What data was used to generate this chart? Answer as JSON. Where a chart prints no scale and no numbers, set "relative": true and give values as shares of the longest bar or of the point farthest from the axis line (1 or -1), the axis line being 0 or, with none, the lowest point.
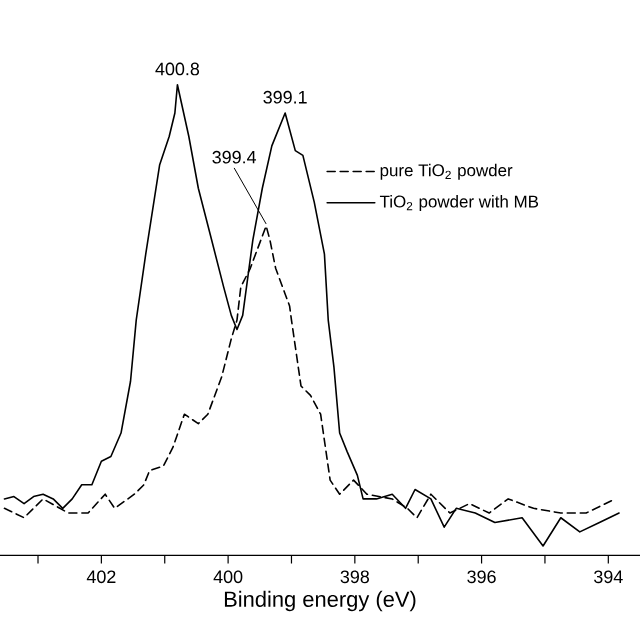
{
  "chart_data": {
    "type": "line",
    "xlabel": "Binding energy (eV)",
    "relative": true,
    "xlim": [
      403.6,
      393.5
    ],
    "xticks": [
      {
        "value": 403,
        "label": null
      },
      402,
      {
        "value": 401,
        "label": null
      },
      400,
      {
        "value": 399,
        "label": null
      },
      398,
      {
        "value": 397,
        "label": null
      },
      396,
      {
        "value": 395,
        "label": null
      },
      394
    ],
    "legend": "right",
    "series": [
      {
        "name": "pure TiO$_{2}$ powder",
        "color": "#000000",
        "line_style": "dashed",
        "x": [
          403.53,
          403.22,
          402.92,
          402.52,
          402.21,
          401.94,
          401.79,
          401.48,
          401.33,
          401.24,
          401.02,
          400.87,
          400.69,
          400.47,
          400.32,
          400.1,
          399.95,
          399.86,
          399.8,
          399.65,
          399.4,
          399.34,
          399.25,
          399.03,
          399.0,
          398.85,
          398.7,
          398.54,
          398.39,
          398.24,
          398.02,
          397.81,
          397.41,
          397.17,
          397.02,
          396.8,
          396.5,
          396.19,
          395.88,
          395.58,
          395.18,
          394.75,
          394.35,
          393.89
        ],
        "values": [
          0.1,
          0.08,
          0.12,
          0.09,
          0.09,
          0.13,
          0.1,
          0.13,
          0.15,
          0.18,
          0.19,
          0.23,
          0.3,
          0.28,
          0.3,
          0.38,
          0.46,
          0.5,
          0.57,
          0.61,
          0.7,
          0.67,
          0.61,
          0.53,
          0.5,
          0.36,
          0.34,
          0.3,
          0.16,
          0.13,
          0.16,
          0.13,
          0.12,
          0.1,
          0.08,
          0.13,
          0.09,
          0.11,
          0.09,
          0.12,
          0.1,
          0.09,
          0.09,
          0.12
        ]
      },
      {
        "name": "TiO$_{2}$ powder with MB",
        "color": "#000000",
        "line_style": "solid",
        "x": [
          403.53,
          403.38,
          403.22,
          403.07,
          402.92,
          402.76,
          402.61,
          402.46,
          402.31,
          402.15,
          402.0,
          401.85,
          401.69,
          401.54,
          401.45,
          401.3,
          401.08,
          400.93,
          400.84,
          400.8,
          400.62,
          400.47,
          400.26,
          400.07,
          399.95,
          399.86,
          399.77,
          399.61,
          399.46,
          399.31,
          399.1,
          398.94,
          398.82,
          398.64,
          398.48,
          398.42,
          398.33,
          398.24,
          398.12,
          397.96,
          397.87,
          397.66,
          397.41,
          397.2,
          397.05,
          396.8,
          396.59,
          396.4,
          396.1,
          395.79,
          395.36,
          395.03,
          394.75,
          394.45,
          394.14,
          393.83
        ],
        "values": [
          0.12,
          0.125,
          0.11,
          0.125,
          0.13,
          0.12,
          0.1,
          0.12,
          0.15,
          0.15,
          0.2,
          0.21,
          0.26,
          0.37,
          0.5,
          0.64,
          0.83,
          0.89,
          0.94,
          1.0,
          0.89,
          0.78,
          0.67,
          0.57,
          0.51,
          0.48,
          0.51,
          0.67,
          0.78,
          0.87,
          0.94,
          0.86,
          0.85,
          0.75,
          0.64,
          0.5,
          0.4,
          0.26,
          0.22,
          0.17,
          0.12,
          0.12,
          0.13,
          0.1,
          0.14,
          0.12,
          0.06,
          0.1,
          0.09,
          0.07,
          0.08,
          0.02,
          0.08,
          0.05,
          0.07,
          0.09
        ]
      }
    ],
    "annotations": [
      {
        "text": "400.8",
        "x": 400.8,
        "y": 1.0
      },
      {
        "text": "399.1",
        "x": 399.1,
        "y": 0.94
      },
      {
        "text": "399.4",
        "x": 399.4,
        "y": 0.7
      }
    ]
  }
}
